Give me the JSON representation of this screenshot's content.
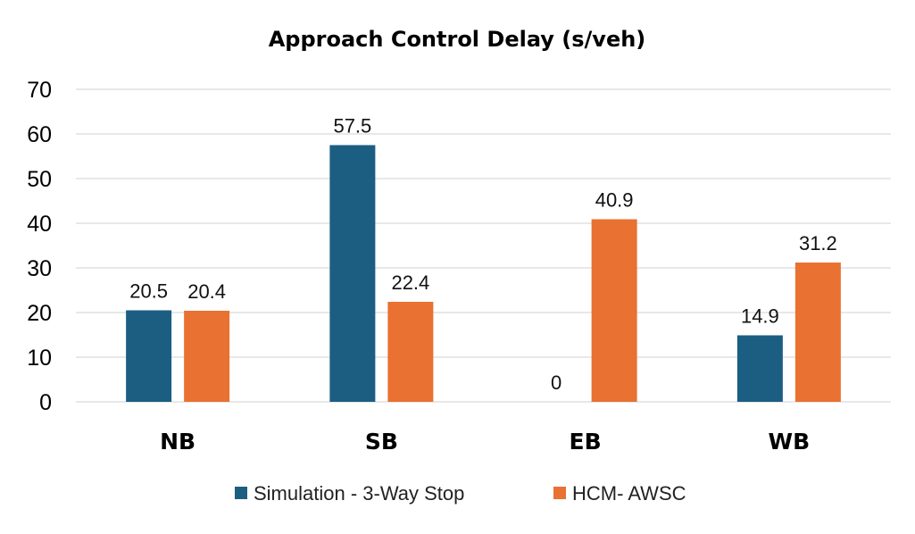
{
  "chart_data": {
    "type": "bar",
    "title": "Approach Control Delay (s/veh)",
    "categories": [
      "NB",
      "SB",
      "EB",
      "WB"
    ],
    "series": [
      {
        "name": "Simulation - 3-Way Stop",
        "values": [
          20.5,
          57.5,
          0,
          14.9
        ],
        "labels": [
          "20.5",
          "57.5",
          "0",
          "14.9"
        ],
        "color": "#1b5e82"
      },
      {
        "name": "HCM- AWSC",
        "values": [
          20.4,
          22.4,
          40.9,
          31.2
        ],
        "labels": [
          "20.4",
          "22.4",
          "40.9",
          "31.2"
        ],
        "color": "#e97132"
      }
    ],
    "ylim": [
      0,
      70
    ],
    "yticks": [
      "0",
      "10",
      "20",
      "30",
      "40",
      "50",
      "60",
      "70"
    ],
    "grid": true,
    "legend": "bottom",
    "xlabel": "",
    "ylabel": ""
  }
}
